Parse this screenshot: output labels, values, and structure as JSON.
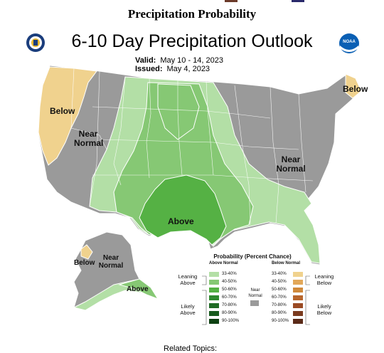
{
  "page_title": "Precipitation Probability",
  "map": {
    "title": "6-10 Day Precipitation Outlook",
    "valid_label": "Valid:",
    "valid_value": "May 10 - 14, 2023",
    "issued_label": "Issued:",
    "issued_value": "May 4, 2023",
    "left_logo": "noaa-commerce-seal",
    "right_logo": "noaa-logo",
    "right_logo_text": "NOAA",
    "region_labels": {
      "west_below": "Below",
      "west_near_normal_1": "Near",
      "west_near_normal_2": "Normal",
      "northeast_below": "Below",
      "east_near_normal_1": "Near",
      "east_near_normal_2": "Normal",
      "south_above": "Above",
      "alaska_below": "Below",
      "alaska_near_normal_1": "Near",
      "alaska_near_normal_2": "Normal",
      "alaska_above": "Above"
    },
    "colors": {
      "below_light": "#f0d28e",
      "near_normal": "#9a9a9a",
      "above_33_40": "#b3dfa6",
      "above_40_50": "#86c874",
      "above_50_60": "#55b144",
      "border": "#ffffff"
    }
  },
  "legend": {
    "title": "Probability (Percent Chance)",
    "above_header": "Above Normal",
    "below_header": "Below Normal",
    "leaning_above_1": "Leaning",
    "leaning_above_2": "Above",
    "likely_above_1": "Likely",
    "likely_above_2": "Above",
    "near_normal_1": "Near",
    "near_normal_2": "Normal",
    "leaning_below_1": "Leaning",
    "leaning_below_2": "Below",
    "likely_below_1": "Likely",
    "likely_below_2": "Below",
    "bins": [
      "33-40%",
      "40-50%",
      "50-60%",
      "60-70%",
      "70-80%",
      "80-90%",
      "90-100%"
    ],
    "above_colors": [
      "#b3dfa6",
      "#86c874",
      "#55b144",
      "#2f8a2f",
      "#1f6a24",
      "#165a1c",
      "#0d4012"
    ],
    "below_colors": [
      "#f0d28e",
      "#e2a85a",
      "#d08a3c",
      "#b8662c",
      "#9a4a24",
      "#7a3a1e",
      "#5a2a18"
    ],
    "near_color": "#9a9a9a"
  },
  "footer_text": "Related Topics:"
}
